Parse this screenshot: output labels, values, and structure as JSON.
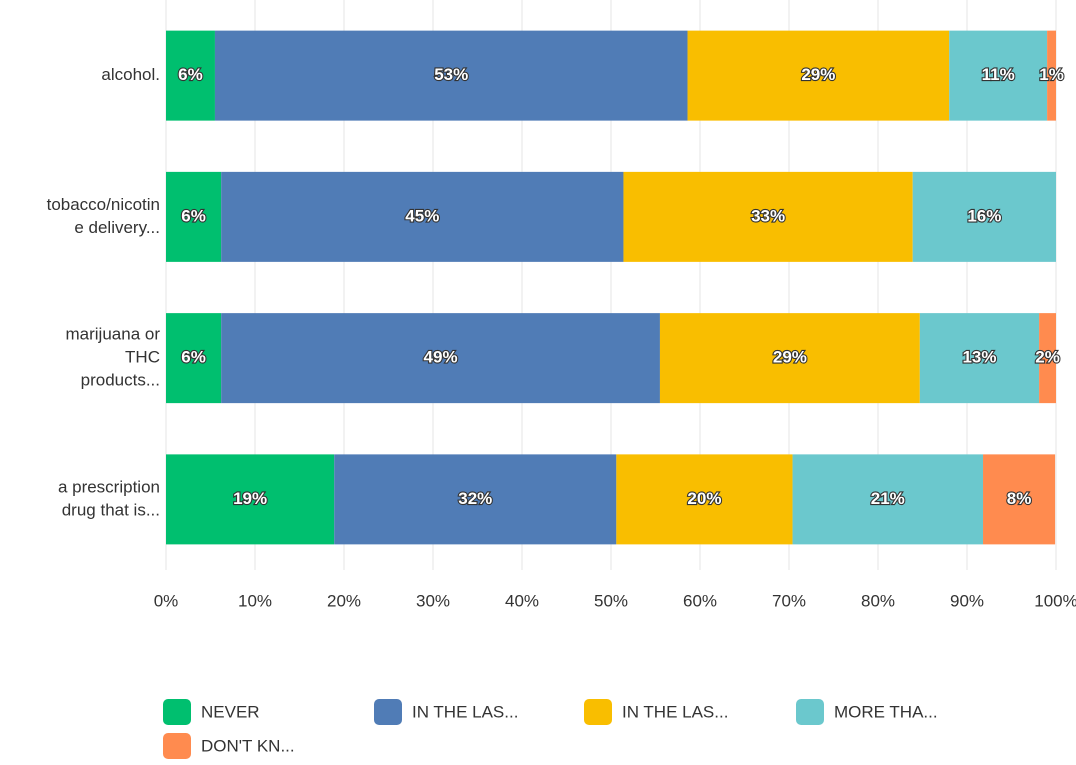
{
  "chart_data": {
    "type": "stacked-bar-horizontal",
    "categories": [
      [
        "alcohol."
      ],
      [
        "tobacco/nicotin",
        "e delivery..."
      ],
      [
        "marijuana or",
        "THC",
        "products..."
      ],
      [
        "a prescription",
        "drug that is..."
      ]
    ],
    "series": [
      {
        "name": "NEVER",
        "color": "#00bf6f",
        "values": [
          5.5,
          6.2,
          6.2,
          18.9
        ],
        "value_labels": [
          "6%",
          "6%",
          "6%",
          "19%"
        ]
      },
      {
        "name": "IN THE LAS...",
        "color": "#507cb6",
        "values": [
          53.1,
          45.2,
          49.3,
          31.7
        ],
        "value_labels": [
          "53%",
          "45%",
          "49%",
          "32%"
        ]
      },
      {
        "name": "IN THE LAS...",
        "color": "#f9be00",
        "values": [
          29.4,
          32.5,
          29.2,
          19.8
        ],
        "value_labels": [
          "29%",
          "33%",
          "29%",
          "20%"
        ]
      },
      {
        "name": "MORE THA...",
        "color": "#6bc8cd",
        "values": [
          11.0,
          16.1,
          13.4,
          21.4
        ],
        "value_labels": [
          "11%",
          "16%",
          "13%",
          "21%"
        ]
      },
      {
        "name": "DON'T KN...",
        "color": "#ff8b4f",
        "values": [
          1.0,
          0,
          1.9,
          8.1
        ],
        "value_labels": [
          "1%",
          null,
          "2%",
          "8%"
        ]
      }
    ],
    "xlim": [
      0,
      100
    ],
    "xticks": [
      {
        "value": 0,
        "label": "0%"
      },
      {
        "value": 10,
        "label": "10%"
      },
      {
        "value": 20,
        "label": "20%"
      },
      {
        "value": 30,
        "label": "30%"
      },
      {
        "value": 40,
        "label": "40%"
      },
      {
        "value": 50,
        "label": "50%"
      },
      {
        "value": 60,
        "label": "60%"
      },
      {
        "value": 70,
        "label": "70%"
      },
      {
        "value": 80,
        "label": "80%"
      },
      {
        "value": 90,
        "label": "90%"
      },
      {
        "value": 100,
        "label": "100%"
      }
    ],
    "grid": true
  }
}
